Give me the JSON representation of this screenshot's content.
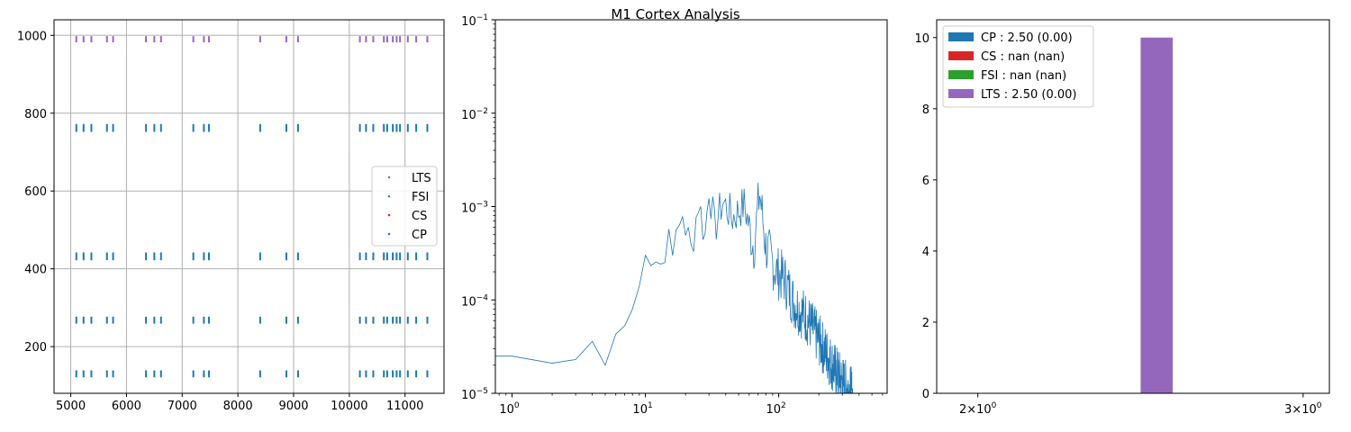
{
  "figure": {
    "title": "M1 Cortex Analysis"
  },
  "chart_data": [
    {
      "type": "scatter",
      "name": "spike-raster",
      "xlim": [
        4700,
        11700
      ],
      "ylim": [
        80,
        1040
      ],
      "xticks": [
        5000,
        6000,
        7000,
        8000,
        9000,
        10000,
        11000
      ],
      "yticks": [
        200,
        400,
        600,
        800,
        1000
      ],
      "xtick_labels": [
        "5000",
        "6000",
        "7000",
        "8000",
        "9000",
        "10000",
        "11000"
      ],
      "ytick_labels": [
        "200",
        "400",
        "600",
        "800",
        "1000"
      ],
      "grid": true,
      "legend_position": "center-right",
      "spike_times": [
        5100,
        5230,
        5370,
        5650,
        5760,
        6350,
        6500,
        6620,
        7200,
        7390,
        7480,
        8400,
        8870,
        9080,
        10190,
        10300,
        10430,
        10620,
        10680,
        10780,
        10850,
        10910,
        11050,
        11200,
        11400
      ],
      "series": [
        {
          "name": "LTS",
          "color": "#9467bd",
          "rows": [
            {
              "y": 990,
              "half": 8
            }
          ]
        },
        {
          "name": "FSI",
          "color": "#2ca02c",
          "rows": []
        },
        {
          "name": "CS",
          "color": "#d62728",
          "rows": []
        },
        {
          "name": "CP",
          "color": "#1f77b4",
          "rows": [
            {
              "y": 762,
              "half": 10
            },
            {
              "y": 432,
              "half": 10
            },
            {
              "y": 268,
              "half": 9
            },
            {
              "y": 130,
              "half": 9
            }
          ]
        }
      ],
      "legend": [
        "LTS",
        "FSI",
        "CS",
        "CP"
      ]
    },
    {
      "type": "line",
      "name": "power-spectrum",
      "xscale": "log",
      "yscale": "log",
      "xlim": [
        0.75,
        650
      ],
      "ylim": [
        1e-05,
        0.1
      ],
      "xtick_labels": [
        {
          "base": "10",
          "exp": "0",
          "value": 1
        },
        {
          "base": "10",
          "exp": "1",
          "value": 10
        },
        {
          "base": "10",
          "exp": "2",
          "value": 100
        }
      ],
      "ytick_labels": [
        {
          "base": "10",
          "exp": "−5",
          "value": 1e-05
        },
        {
          "base": "10",
          "exp": "−4",
          "value": 0.0001
        },
        {
          "base": "10",
          "exp": "−3",
          "value": 0.001
        },
        {
          "base": "10",
          "exp": "−2",
          "value": 0.01
        },
        {
          "base": "10",
          "exp": "−1",
          "value": 0.1
        }
      ],
      "color": "#1f77b4",
      "anchors": [
        [
          0.75,
          2.5e-05
        ],
        [
          1,
          2.5e-05
        ],
        [
          2,
          2.1e-05
        ],
        [
          3,
          2.3e-05
        ],
        [
          4,
          3.6e-05
        ],
        [
          5,
          2e-05
        ],
        [
          6,
          4.3e-05
        ],
        [
          7,
          5.3e-05
        ],
        [
          8,
          8e-05
        ],
        [
          9,
          0.00014
        ],
        [
          10,
          0.00032
        ],
        [
          11,
          0.00023
        ],
        [
          12,
          0.0004
        ],
        [
          14,
          0.00028
        ],
        [
          15,
          0.0006
        ],
        [
          17,
          0.0004
        ],
        [
          19,
          0.0009
        ],
        [
          22,
          0.00035
        ],
        [
          25,
          0.0012
        ],
        [
          28,
          0.0005
        ],
        [
          30,
          0.0018
        ],
        [
          33,
          0.0006
        ],
        [
          38,
          0.0012
        ],
        [
          45,
          0.0008
        ],
        [
          55,
          0.0011
        ],
        [
          65,
          0.0004
        ],
        [
          72,
          0.0015
        ],
        [
          80,
          0.0004
        ],
        [
          95,
          0.00022
        ],
        [
          110,
          0.00018
        ],
        [
          130,
          0.0001
        ],
        [
          160,
          7e-05
        ],
        [
          200,
          4e-05
        ],
        [
          250,
          2.2e-05
        ],
        [
          300,
          1.4e-05
        ],
        [
          330,
          1.2e-05
        ],
        [
          360,
          1e-05
        ]
      ],
      "noise_amplitude": 0.45,
      "num_points": 360
    },
    {
      "type": "bar",
      "name": "isi-histogram",
      "xscale": "log",
      "xlim": [
        1.9,
        3.1
      ],
      "ylim": [
        0,
        10.5
      ],
      "yticks": [
        0,
        2,
        4,
        6,
        8,
        10
      ],
      "ytick_labels": [
        "0",
        "2",
        "4",
        "6",
        "8",
        "10"
      ],
      "xtick_labels": [
        {
          "mant": "2",
          "base": "10",
          "exp": "0",
          "value": 2
        },
        {
          "mant": "3",
          "base": "10",
          "exp": "0",
          "value": 3
        }
      ],
      "bars": [
        {
          "series": "LTS",
          "x0": 2.45,
          "x1": 2.55,
          "value": 10,
          "color": "#9467bd"
        }
      ],
      "legend": [
        {
          "label": "CP : 2.50 (0.00)",
          "color": "#1f77b4"
        },
        {
          "label": "CS : nan (nan)",
          "color": "#d62728"
        },
        {
          "label": "FSI : nan (nan)",
          "color": "#2ca02c"
        },
        {
          "label": "LTS : 2.50 (0.00)",
          "color": "#9467bd"
        }
      ],
      "legend_position": "top-left"
    }
  ]
}
